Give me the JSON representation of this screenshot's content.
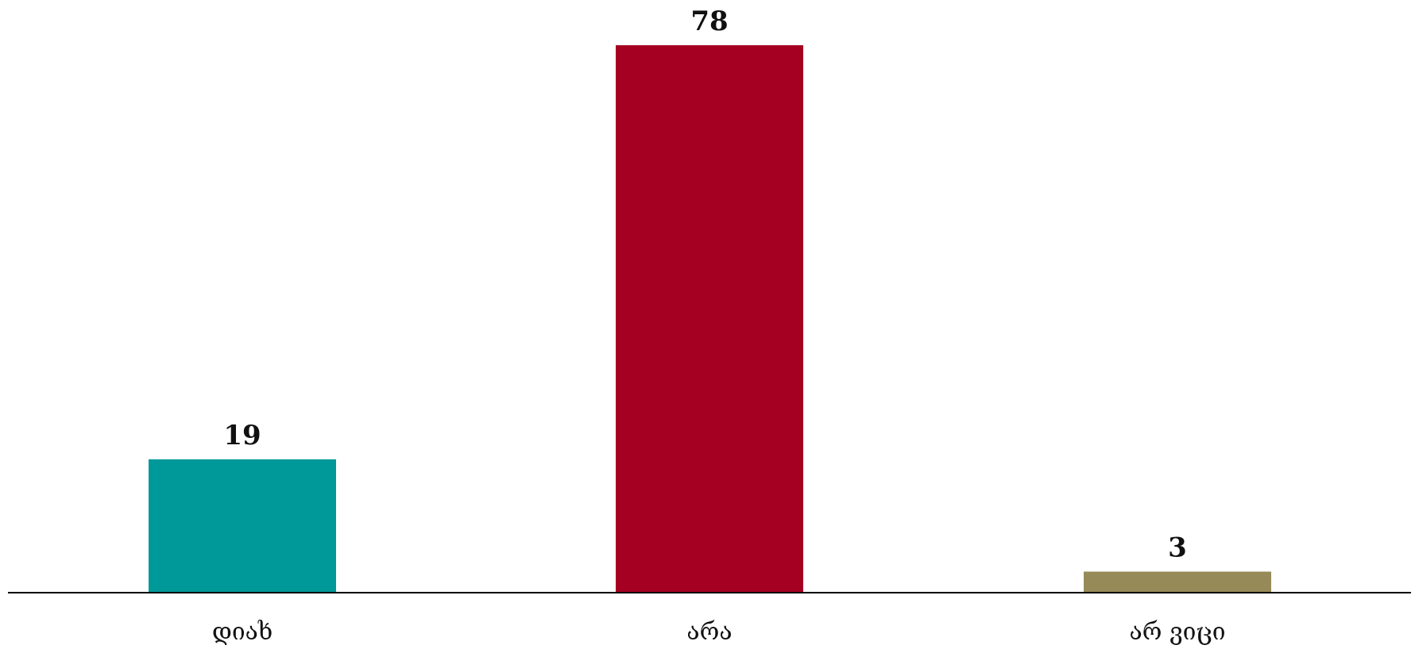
{
  "chart_data": {
    "type": "bar",
    "categories": [
      "დიახ",
      "არა",
      "არ ვიცი"
    ],
    "values": [
      19,
      78,
      3
    ],
    "colors": [
      "#009999",
      "#A50021",
      "#968A58"
    ],
    "title": "",
    "xlabel": "",
    "ylabel": "",
    "ylim": [
      0,
      78
    ],
    "grid": false,
    "legend": "none"
  }
}
